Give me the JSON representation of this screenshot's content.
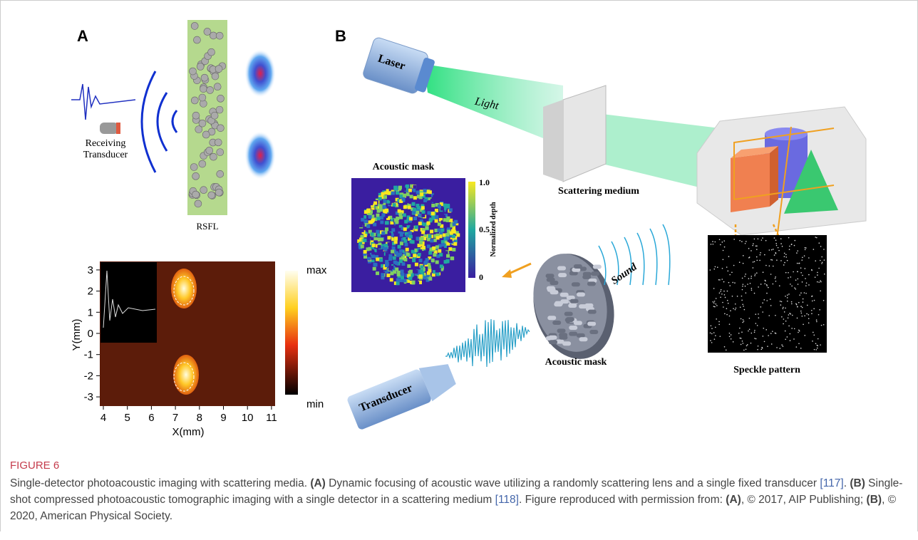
{
  "panel_a": {
    "label": "A",
    "receiver_label": [
      "Receiving",
      "Transducer"
    ],
    "lens_label": "RSFL",
    "plot": {
      "xticks": [
        4,
        5,
        6,
        7,
        8,
        9,
        10,
        11
      ],
      "yticks": [
        3,
        2,
        1,
        0,
        -1,
        -2,
        -3
      ],
      "xlabel": "X(mm)",
      "ylabel": "Y(mm)",
      "colorbar_max": "max",
      "colorbar_min": "min"
    }
  },
  "panel_b": {
    "label": "B",
    "laser_label": "Laser",
    "light_label": "Light",
    "medium_label": "Scattering medium",
    "mask_image_title": "Acoustic mask",
    "colorbar_labels": [
      "1.0",
      "0.5",
      "0"
    ],
    "colorbar_title": "Normalized depth",
    "sound_label": "Sound",
    "transducer_label": "Transducer",
    "mask_label": "Acoustic mask",
    "speckle_label": "Speckle pattern"
  },
  "caption": {
    "figure_label": "FIGURE 6",
    "segments": [
      {
        "text": "Single-detector photoacoustic imaging with scattering media. ",
        "style": "plain"
      },
      {
        "text": "(A)",
        "style": "bold"
      },
      {
        "text": " Dynamic focusing of acoustic wave utilizing a randomly scattering lens and a single fixed transducer ",
        "style": "plain"
      },
      {
        "text": "[117]",
        "style": "link"
      },
      {
        "text": ". ",
        "style": "plain"
      },
      {
        "text": "(B)",
        "style": "bold"
      },
      {
        "text": " Single-shot compressed photoacoustic tomographic imaging with a single detector in a scattering medium ",
        "style": "plain"
      },
      {
        "text": "[118]",
        "style": "link"
      },
      {
        "text": ". Figure reproduced with permission from: ",
        "style": "plain"
      },
      {
        "text": "(A)",
        "style": "bold"
      },
      {
        "text": ", © 2017, AIP Publishing; ",
        "style": "plain"
      },
      {
        "text": "(B)",
        "style": "bold"
      },
      {
        "text": ", © 2020, American Physical Society.",
        "style": "plain"
      }
    ]
  }
}
